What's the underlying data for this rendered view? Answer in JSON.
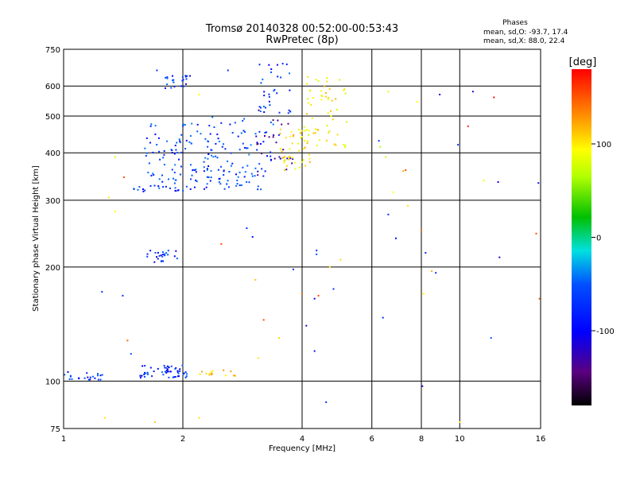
{
  "chart_data": {
    "type": "scatter",
    "title": "Tromsø 20140328 00:52:00-00:53:43",
    "subtitle": "RwPretec (8p)",
    "xlabel": "Frequency [MHz]",
    "ylabel": "Stationary phase Virtual Height [km]",
    "xscale": "log",
    "yscale": "log",
    "xlim": [
      1,
      16
    ],
    "ylim": [
      75,
      750
    ],
    "xticks": [
      1,
      2,
      4,
      6,
      8,
      10,
      16
    ],
    "yticks": [
      75,
      100,
      200,
      300,
      400,
      500,
      600,
      750
    ],
    "grid": true,
    "phases_block": {
      "title": "Phases",
      "line_o": "mean, sd,O: -93.7, 17.4",
      "line_x": "mean, sd,X:  88.0, 22.4"
    },
    "colorbar": {
      "label": "[deg]",
      "range": [
        -180,
        180
      ],
      "ticks": [
        100,
        0,
        -100
      ]
    },
    "clusters": [
      {
        "f": [
          1.0,
          1.28
        ],
        "h": [
          100,
          106
        ],
        "phase": -100,
        "count": 22
      },
      {
        "f": [
          1.55,
          2.05
        ],
        "h": [
          102,
          110
        ],
        "phase": -100,
        "count": 55
      },
      {
        "f": [
          2.2,
          2.75
        ],
        "h": [
          103,
          107
        ],
        "phase": 115,
        "count": 14
      },
      {
        "f": [
          1.62,
          1.95
        ],
        "h": [
          205,
          222
        ],
        "phase": -100,
        "count": 24
      },
      {
        "f": [
          1.5,
          2.1
        ],
        "h": [
          315,
          330
        ],
        "phase": -100,
        "count": 22
      },
      {
        "f": [
          1.6,
          2.4
        ],
        "h": [
          330,
          480
        ],
        "phase": -90,
        "count": 85
      },
      {
        "f": [
          1.8,
          2.1
        ],
        "h": [
          590,
          640
        ],
        "phase": -100,
        "count": 24
      },
      {
        "f": [
          2.1,
          3.2
        ],
        "h": [
          320,
          370
        ],
        "phase": -95,
        "count": 45
      },
      {
        "f": [
          2.3,
          3.4
        ],
        "h": [
          360,
          500
        ],
        "phase": -90,
        "count": 55
      },
      {
        "f": [
          3.0,
          3.8
        ],
        "h": [
          340,
          520
        ],
        "phase": -130,
        "count": 32
      },
      {
        "f": [
          3.1,
          3.8
        ],
        "h": [
          500,
          690
        ],
        "phase": -100,
        "count": 32
      },
      {
        "f": [
          3.5,
          4.2
        ],
        "h": [
          360,
          470
        ],
        "phase": 110,
        "count": 50
      },
      {
        "f": [
          4.1,
          5.2
        ],
        "h": [
          410,
          640
        ],
        "phase": 105,
        "count": 55
      }
    ],
    "sparse_points": [
      [
        1.35,
        390,
        80
      ],
      [
        1.35,
        280,
        100
      ],
      [
        1.3,
        305,
        110
      ],
      [
        1.42,
        345,
        160
      ],
      [
        1.25,
        172,
        -100
      ],
      [
        1.41,
        168,
        -100
      ],
      [
        1.48,
        118,
        -90
      ],
      [
        1.45,
        128,
        150
      ],
      [
        1.27,
        80,
        110
      ],
      [
        1.7,
        78,
        120
      ],
      [
        1.72,
        660,
        -100
      ],
      [
        2.2,
        80,
        110
      ],
      [
        2.6,
        660,
        -100
      ],
      [
        2.2,
        570,
        100
      ],
      [
        2.5,
        230,
        160
      ],
      [
        2.9,
        253,
        -100
      ],
      [
        3.0,
        240,
        -110
      ],
      [
        3.05,
        185,
        120
      ],
      [
        3.2,
        145,
        160
      ],
      [
        3.1,
        115,
        110
      ],
      [
        3.5,
        130,
        115
      ],
      [
        3.8,
        197,
        -100
      ],
      [
        4.0,
        170,
        150
      ],
      [
        4.1,
        140,
        -130
      ],
      [
        4.35,
        221,
        -100
      ],
      [
        4.35,
        216,
        -90
      ],
      [
        4.3,
        165,
        -120
      ],
      [
        4.3,
        120,
        -110
      ],
      [
        4.4,
        168,
        160
      ],
      [
        4.6,
        88,
        -100
      ],
      [
        4.7,
        200,
        110
      ],
      [
        4.8,
        175,
        -100
      ],
      [
        5.0,
        209,
        115
      ],
      [
        6.25,
        430,
        -100
      ],
      [
        6.3,
        415,
        70
      ],
      [
        6.4,
        147,
        -100
      ],
      [
        6.5,
        390,
        80
      ],
      [
        6.6,
        275,
        -100
      ],
      [
        6.6,
        580,
        90
      ],
      [
        6.8,
        315,
        100
      ],
      [
        6.9,
        238,
        -110
      ],
      [
        7.3,
        360,
        160
      ],
      [
        7.2,
        358,
        130
      ],
      [
        7.4,
        290,
        110
      ],
      [
        7.8,
        545,
        100
      ],
      [
        8.0,
        250,
        150
      ],
      [
        8.05,
        97,
        -120
      ],
      [
        8.2,
        218,
        -100
      ],
      [
        8.5,
        195,
        130
      ],
      [
        8.7,
        193,
        -100
      ],
      [
        8.9,
        570,
        -130
      ],
      [
        8.1,
        170,
        100
      ],
      [
        9.9,
        420,
        -100
      ],
      [
        10.0,
        78,
        100
      ],
      [
        10.5,
        470,
        170
      ],
      [
        10.8,
        580,
        -130
      ],
      [
        11.5,
        338,
        95
      ],
      [
        12.2,
        560,
        180
      ],
      [
        12.0,
        130,
        -90
      ],
      [
        12.5,
        335,
        -120
      ],
      [
        12.6,
        212,
        -130
      ],
      [
        15.6,
        245,
        160
      ],
      [
        15.8,
        333,
        -110
      ],
      [
        15.9,
        165,
        150
      ]
    ]
  }
}
